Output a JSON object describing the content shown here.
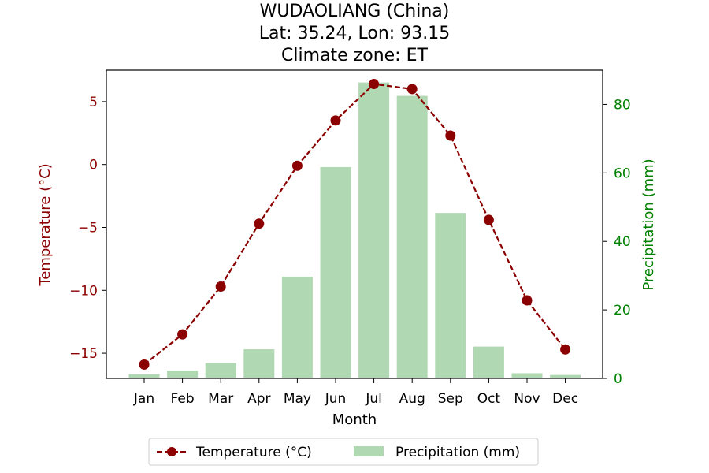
{
  "title": {
    "line1": "WUDAOLIANG (China)",
    "line2": "Lat: 35.24, Lon: 93.15",
    "line3": "Climate zone: ET"
  },
  "colors": {
    "temperature": "#8b0000",
    "precipitation_bar": "#b0d8b2",
    "precipitation_axis": "#008000"
  },
  "chart_data": {
    "type": "bar+line",
    "categories": [
      "Jan",
      "Feb",
      "Mar",
      "Apr",
      "May",
      "Jun",
      "Jul",
      "Aug",
      "Sep",
      "Oct",
      "Nov",
      "Dec"
    ],
    "xlabel": "Month",
    "temperature": {
      "name": "Temperature (°C)",
      "axis_label": "Temperature (°C)",
      "values": [
        -15.9,
        -13.5,
        -9.7,
        -4.7,
        -0.1,
        3.5,
        6.4,
        6.0,
        2.3,
        -4.4,
        -10.8,
        -14.7
      ],
      "ylim": [
        -17.0,
        7.5
      ],
      "ticks": [
        5,
        0,
        -5,
        -10,
        -15
      ],
      "tick_labels": [
        "5",
        "0",
        "−5",
        "−10",
        "−15"
      ],
      "style": "dashed line with circle markers"
    },
    "precipitation": {
      "name": "Precipitation (mm)",
      "axis_label": "Precipitation (mm)",
      "values": [
        1.2,
        2.3,
        4.5,
        8.5,
        29.7,
        61.7,
        86.4,
        82.5,
        48.3,
        9.3,
        1.5,
        1.0
      ],
      "ylim": [
        0,
        90
      ],
      "ticks": [
        0,
        20,
        40,
        60,
        80
      ],
      "tick_labels": [
        "0",
        "20",
        "40",
        "60",
        "80"
      ]
    },
    "legend": {
      "position": "bottom-center",
      "items": [
        "Temperature (°C)",
        "Precipitation (mm)"
      ]
    },
    "grid": false
  }
}
